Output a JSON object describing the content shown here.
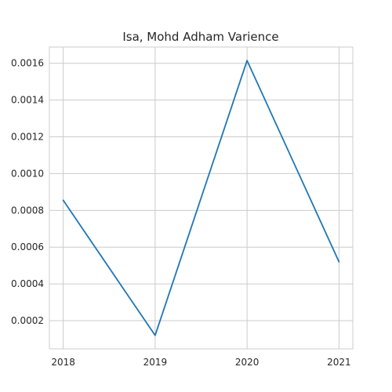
{
  "chart_data": {
    "type": "line",
    "title": "Isa, Mohd Adham Varience",
    "xlabel": "",
    "ylabel": "",
    "x": [
      "2018",
      "2019",
      "2020",
      "2021"
    ],
    "series": [
      {
        "values": [
          0.000855,
          0.00012,
          0.001615,
          0.00052
        ]
      }
    ],
    "yticks": [
      0.0002,
      0.0004,
      0.0006,
      0.0008,
      0.001,
      0.0012,
      0.0014,
      0.0016
    ],
    "ytick_labels": [
      "0.0002",
      "0.0004",
      "0.0006",
      "0.0008",
      "0.0010",
      "0.0012",
      "0.0014",
      "0.0016"
    ],
    "ylim": [
      4.665e-05,
      0.00168835
    ],
    "xlim": [
      -0.15,
      3.15
    ],
    "grid": true,
    "colors": {
      "line": "#1f77b4",
      "grid": "#cccccc",
      "axis": "#cccccc",
      "text": "#262626",
      "background": "#ffffff"
    }
  }
}
